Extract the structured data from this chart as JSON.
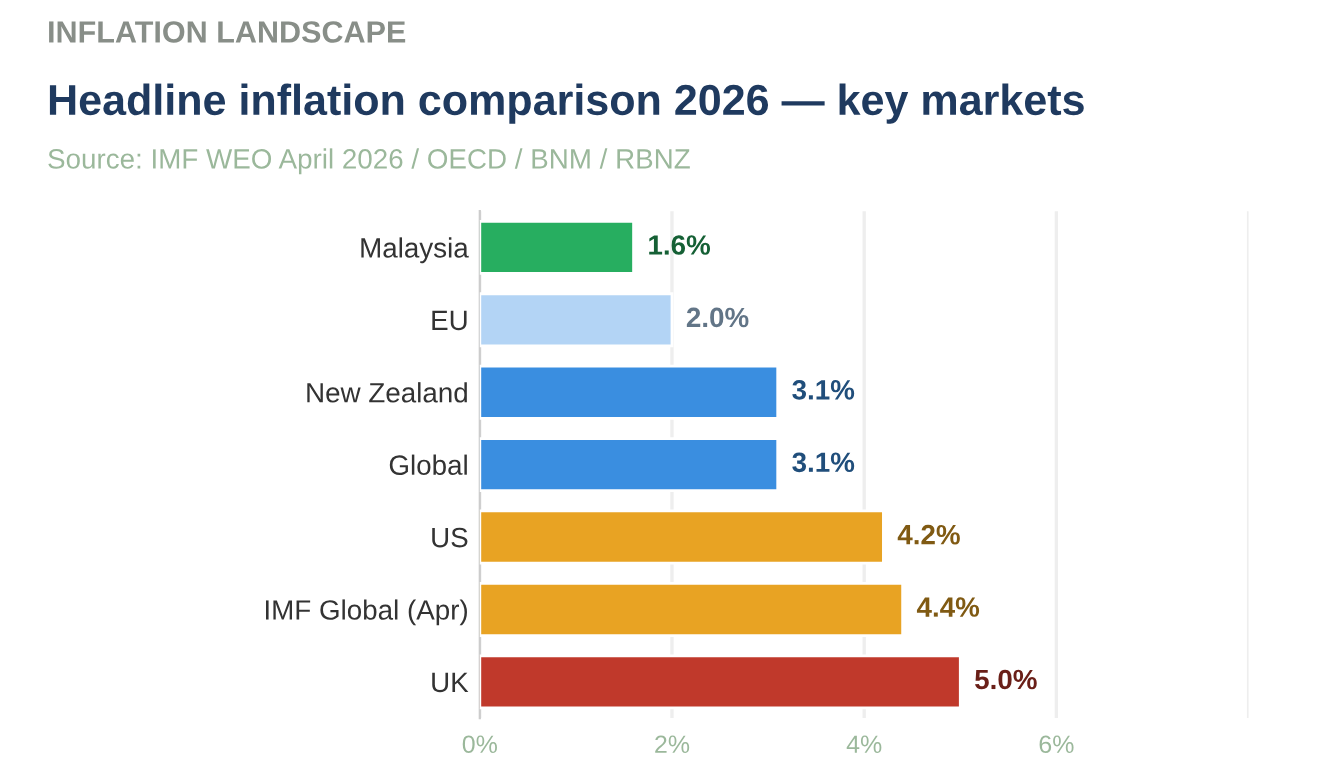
{
  "chart_data": {
    "type": "bar",
    "orientation": "horizontal",
    "title": "Headline inflation comparison 2026 — key markets",
    "subtitle": "Source: IMF WEO April 2026 / OECD / BNM / RBNZ",
    "annotations": [
      "INFLATION LANDSCAPE"
    ],
    "categories": [
      "Malaysia",
      "EU",
      "New Zealand",
      "Global",
      "US",
      "IMF Global (Apr)",
      "UK"
    ],
    "values": [
      1.6,
      2.0,
      3.1,
      3.1,
      4.2,
      4.4,
      5.0
    ],
    "colors": [
      "#27ae60",
      "#b3d4f5",
      "#3a8ee0",
      "#3a8ee0",
      "#e8a323",
      "#e8a323",
      "#c0392b"
    ],
    "value_labels": [
      "1.6%",
      "2.0%",
      "3.1%",
      "3.1%",
      "4.2%",
      "4.4%",
      "5.0%"
    ],
    "xlim": [
      0,
      8
    ],
    "xticks": [
      {
        "value": 0,
        "label": "0%"
      },
      {
        "value": 2,
        "label": "2%"
      },
      {
        "value": 4,
        "label": "4%"
      },
      {
        "value": 6,
        "label": "6%"
      },
      {
        "value": 8,
        "label": null
      }
    ],
    "grid": "x",
    "legend": false
  }
}
